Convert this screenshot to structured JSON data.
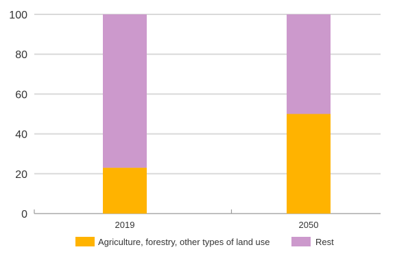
{
  "chart_data": {
    "type": "bar",
    "stacked": true,
    "categories": [
      "2019",
      "2050"
    ],
    "series": [
      {
        "name": "Agriculture, forestry, other types of land use",
        "values": [
          23,
          50
        ],
        "color": "#FFB300"
      },
      {
        "name": "Rest",
        "values": [
          77,
          50
        ],
        "color": "#CC99CC"
      }
    ],
    "ylim": [
      0,
      100
    ],
    "yticks": [
      "0",
      "20",
      "40",
      "60",
      "80",
      "100"
    ],
    "grid": true,
    "legend_position": "bottom"
  }
}
